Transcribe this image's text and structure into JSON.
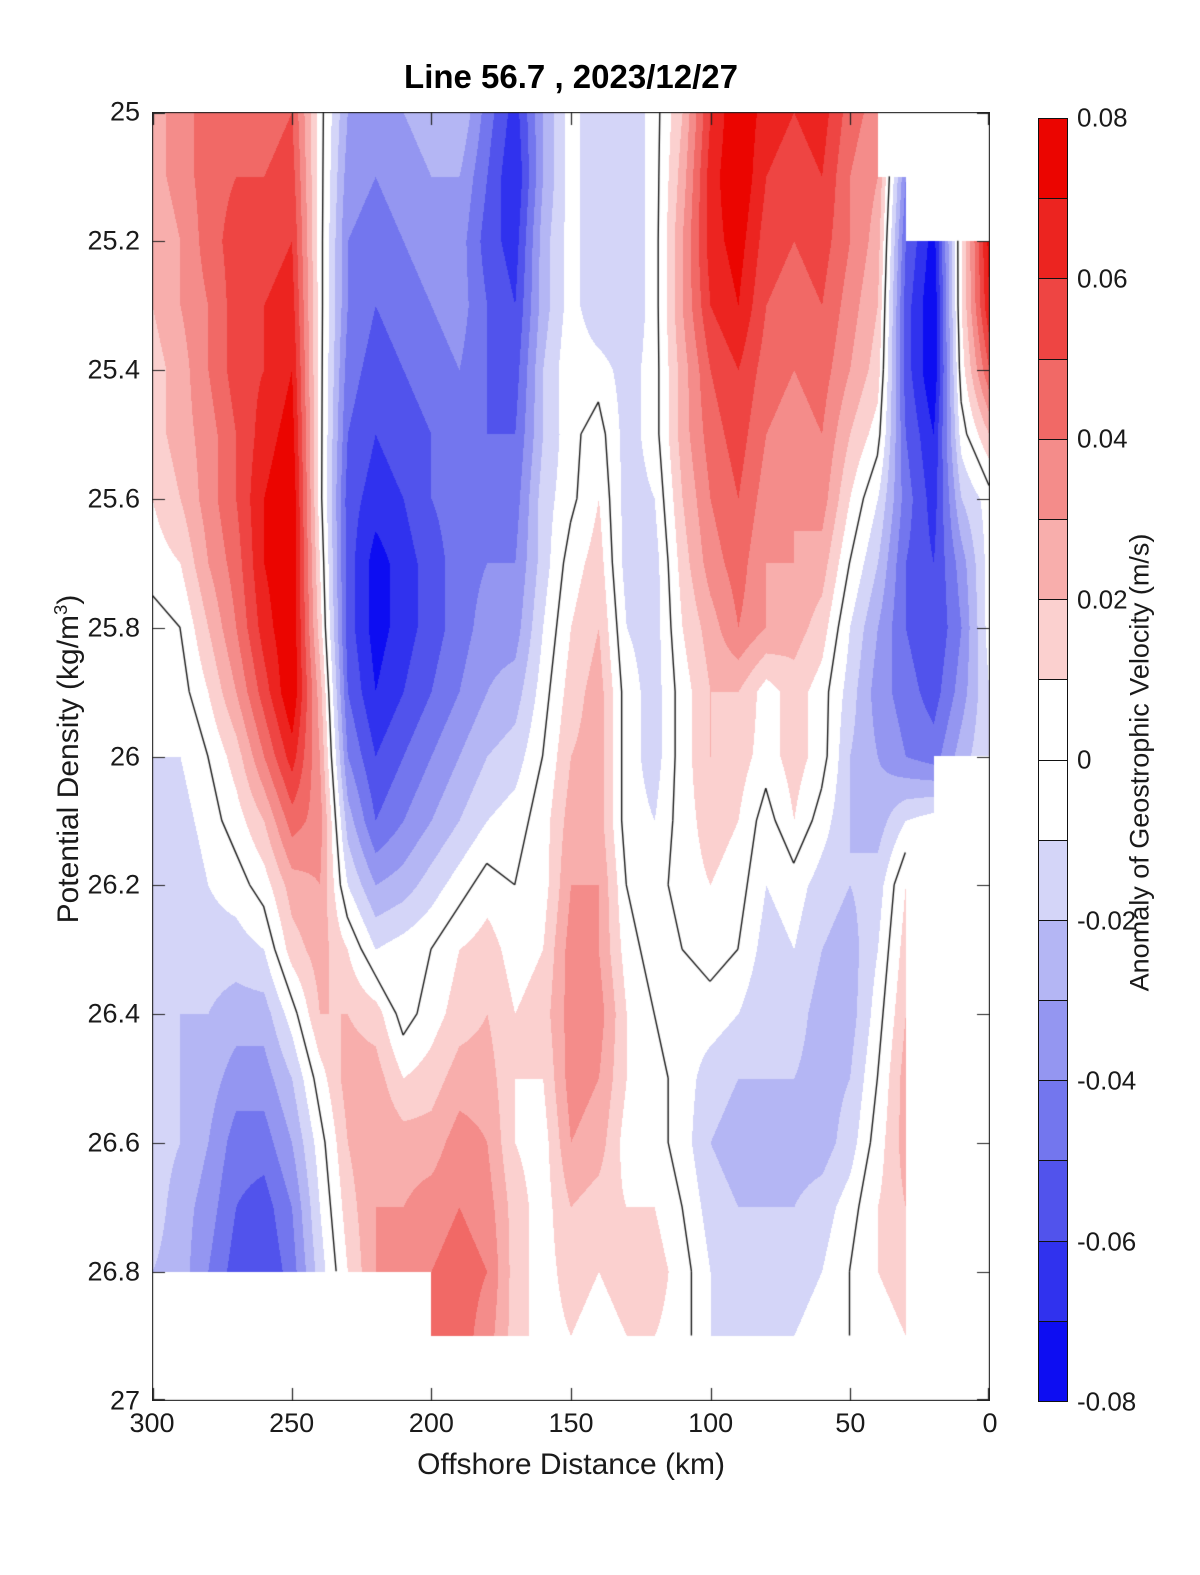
{
  "title": "Line 56.7 , 2023/12/27",
  "axes": {
    "xlabel": "Offshore Distance (km)",
    "ylabel_prefix": "Potential Density (kg/m",
    "ylabel_sup": "3",
    "ylabel_suffix": ")",
    "x_tick_labels": [
      "300",
      "250",
      "200",
      "150",
      "100",
      "50",
      "0"
    ],
    "x_tick_values": [
      300,
      250,
      200,
      150,
      100,
      50,
      0
    ],
    "y_tick_labels": [
      "25",
      "25.2",
      "25.4",
      "25.6",
      "25.8",
      "26",
      "26.2",
      "26.4",
      "26.6",
      "26.8",
      "27"
    ],
    "y_tick_values": [
      25,
      25.2,
      25.4,
      25.6,
      25.8,
      26,
      26.2,
      26.4,
      26.6,
      26.8,
      27
    ],
    "x_range": [
      300,
      0
    ],
    "y_range": [
      25,
      27
    ]
  },
  "colorbar": {
    "label": "Anomaly of Geostrophic Velocity (m/s)",
    "tick_labels": [
      "0.08",
      "0.06",
      "0.04",
      "0.02",
      "0",
      "-0.02",
      "-0.04",
      "-0.06",
      "-0.08"
    ],
    "tick_values": [
      0.08,
      0.06,
      0.04,
      0.02,
      0,
      -0.02,
      -0.04,
      -0.06,
      -0.08
    ],
    "range": [
      -0.08,
      0.08
    ],
    "level_step": 0.01,
    "colors_neg_to_pos": [
      "#0d0df2",
      "#3032ee",
      "#5153ec",
      "#7376ee",
      "#9496f1",
      "#b4b6f4",
      "#d4d5f8",
      "#ffffff",
      "#ffffff",
      "#fbd0cf",
      "#f8aeac",
      "#f48c8a",
      "#f16966",
      "#ee4543",
      "#ec2420",
      "#eb0500"
    ]
  },
  "chart_data": {
    "type": "heatmap",
    "title": "Line 56.7 , 2023/12/27",
    "xlabel": "Offshore Distance (km)",
    "ylabel": "Potential Density (kg/m3)",
    "zlabel": "Anomaly of Geostrophic Velocity (m/s)",
    "x_axis_reversed": true,
    "grid": false,
    "contour_level": 0,
    "value_units": "0.01 m/s",
    "x_km": [
      300,
      290,
      280,
      270,
      260,
      250,
      240,
      230,
      220,
      210,
      200,
      190,
      180,
      170,
      160,
      150,
      140,
      130,
      120,
      110,
      100,
      90,
      80,
      70,
      60,
      50,
      40,
      30,
      20,
      10,
      0
    ],
    "y_sigma": [
      25.0,
      25.1,
      25.2,
      25.3,
      25.4,
      25.5,
      25.6,
      25.7,
      25.8,
      25.9,
      26.0,
      26.1,
      26.2,
      26.3,
      26.4,
      26.5,
      26.6,
      26.7,
      26.8,
      26.9,
      27.0
    ],
    "values": [
      [
        2.5,
        3.5,
        4.5,
        4.5,
        4.5,
        5,
        0.5,
        -3,
        -3.5,
        -3,
        -2.5,
        -2,
        -4.5,
        -6.5,
        -3,
        -0.5,
        -2,
        -2,
        -0.5,
        2,
        6,
        8,
        6.5,
        6,
        6.5,
        4.5,
        3.5,
        null,
        null,
        null,
        null
      ],
      [
        2.5,
        3.5,
        4.5,
        5,
        5,
        5.5,
        0.5,
        -3.5,
        -4,
        -3.5,
        -3,
        -3,
        -5,
        -7,
        -3,
        -0.5,
        -2,
        -2,
        -0.5,
        2.5,
        6.5,
        8,
        6,
        5.5,
        6,
        4,
        3,
        -4,
        null,
        null,
        null
      ],
      [
        2,
        3,
        4.5,
        5.5,
        5.5,
        6,
        0.5,
        -4,
        -4.5,
        -4,
        -3.5,
        -3.5,
        -5.5,
        -6.5,
        -2.5,
        -0.5,
        -2,
        -2,
        -0.5,
        3,
        6.5,
        7.5,
        5.5,
        5,
        5.5,
        4,
        2.5,
        -5,
        -7.5,
        1,
        7.5
      ],
      [
        2,
        3,
        4,
        5.5,
        6,
        6.5,
        0.5,
        -4,
        -5,
        -4.5,
        -4,
        -3.5,
        -5,
        -6,
        -2.5,
        -0.5,
        -2,
        -2,
        -0.5,
        3,
        6,
        7,
        5,
        4.5,
        5,
        3.5,
        2,
        -5.5,
        -8,
        1,
        7
      ],
      [
        1.5,
        2.5,
        4,
        5.5,
        6,
        7,
        0.5,
        -4.5,
        -5.5,
        -5,
        -4.5,
        -4,
        -5,
        -5.5,
        -2,
        -0.2,
        -0.5,
        -1.5,
        -0.5,
        2.5,
        5,
        6,
        4.5,
        4,
        4.5,
        3,
        1.5,
        -5.5,
        -8,
        0.5,
        5
      ],
      [
        1.5,
        2.5,
        3.5,
        5,
        6.5,
        7.5,
        0.5,
        -5,
        -6,
        -5.5,
        -5,
        -4.5,
        -5,
        -5,
        -2,
        -0.3,
        0.5,
        -1.5,
        -0.5,
        2.5,
        4.5,
        5.5,
        4,
        3.5,
        4,
        2,
        0.5,
        -5,
        -7,
        -0.5,
        2
      ],
      [
        1,
        2,
        3.5,
        5,
        7,
        8,
        0.5,
        -5.5,
        -6.5,
        -6,
        -5,
        -4.5,
        -4.5,
        -4.5,
        -1.5,
        -0.3,
        1,
        -1.5,
        -1,
        2,
        4,
        5,
        3.5,
        3,
        3.5,
        1,
        -1,
        -4.5,
        -6.5,
        -2,
        -0.5
      ],
      [
        0.5,
        1,
        3,
        4.5,
        7,
        8,
        1,
        -5.5,
        -7.5,
        -6.5,
        -5.5,
        -4.5,
        -4,
        -4,
        -1.5,
        0.5,
        1.5,
        -1.5,
        -1.5,
        1.5,
        3.5,
        4.5,
        3,
        3,
        2.5,
        0,
        -2,
        -5,
        -6,
        -3.5,
        -0.5
      ],
      [
        -0.5,
        0,
        2,
        4,
        6.5,
        8,
        1.5,
        -5.5,
        -7.5,
        -6.5,
        -5.5,
        -4.5,
        -3.5,
        -3.5,
        -1,
        1,
        2,
        -1,
        -1.5,
        1,
        2.5,
        4,
        3,
        2.5,
        1.5,
        -1,
        -3,
        -5,
        -6,
        -4,
        -0.5
      ],
      [
        -0.5,
        -0.5,
        1,
        3,
        5.5,
        8,
        2.5,
        -5,
        -7,
        -6,
        -5,
        -4,
        -3,
        -2.5,
        -0.5,
        1.5,
        2.5,
        -0.5,
        -1.5,
        0.5,
        2,
        2,
        0.5,
        1.5,
        0.5,
        -1.5,
        -3.5,
        -4.5,
        -5.5,
        -3.5,
        -1
      ],
      [
        -1,
        -1,
        0,
        1.5,
        4,
        6.5,
        3,
        -4,
        -6,
        -5,
        -4,
        -3,
        -2,
        -1.5,
        0,
        2,
        2.5,
        -0.5,
        -1.5,
        0.5,
        2,
        1.5,
        0.5,
        1.5,
        0.5,
        -2,
        -3,
        -4,
        -4.5,
        -2.5,
        -1
      ],
      [
        -1.5,
        -1.5,
        -0.5,
        0.5,
        2,
        4.5,
        3.5,
        -2.5,
        -5,
        -4,
        -3,
        -2,
        -1,
        -0.5,
        0.5,
        2.5,
        2.5,
        -0.5,
        -1,
        0.5,
        1.5,
        1,
        -0.5,
        1,
        -0.5,
        -2,
        -2.5,
        -1,
        -0.5,
        null,
        null
      ],
      [
        -1.5,
        -2,
        -1,
        -0.5,
        0.5,
        2.5,
        3,
        -1,
        -3,
        -2.5,
        -1.5,
        -0.5,
        0.5,
        0,
        0.5,
        3,
        3,
        0,
        -0.5,
        0.5,
        1,
        0.5,
        -1,
        -0.5,
        -1.5,
        -2,
        -1.5,
        1,
        null,
        null,
        null
      ],
      [
        -1.5,
        -2,
        -1.5,
        -1.5,
        -1,
        1.5,
        2.5,
        1,
        -1,
        -0.5,
        0,
        1,
        1.5,
        0.5,
        1,
        3.5,
        3,
        0.5,
        -0.5,
        0,
        0.5,
        0,
        -1.5,
        -1,
        -2,
        -2.5,
        -1,
        1.5,
        null,
        null,
        null
      ],
      [
        -1.5,
        -2,
        -2,
        -2.5,
        -2.5,
        -0.5,
        2,
        2,
        1.5,
        -0.5,
        0.5,
        1.5,
        2,
        1,
        1.5,
        3.5,
        3.5,
        1,
        0,
        -0.5,
        -0.5,
        -1,
        -2,
        -1.5,
        -2.5,
        -2.5,
        -0.5,
        2,
        null,
        null,
        null
      ],
      [
        -1.5,
        -2,
        -2.5,
        -3.5,
        -3.5,
        -2,
        0.5,
        2.5,
        2.5,
        1,
        1.5,
        2.5,
        2.5,
        1,
        1,
        3.5,
        3,
        1,
        0.5,
        -0.5,
        -1.5,
        -2,
        -2,
        -2,
        -2.5,
        -2,
        0,
        2.5,
        null,
        null,
        null
      ],
      [
        -1.5,
        -2,
        -3,
        -4.5,
        -4.5,
        -3,
        -0.5,
        2,
        3,
        2.5,
        2.5,
        3.5,
        3,
        1,
        0.5,
        3,
        2.5,
        0.5,
        0.5,
        -0.5,
        -2,
        -2.5,
        -2.5,
        -2.5,
        -2.5,
        -1.5,
        0.5,
        2.5,
        null,
        null,
        null
      ],
      [
        -1.5,
        -2.5,
        -3.5,
        -5,
        -5.5,
        -4,
        -1,
        1.5,
        3,
        3,
        3.5,
        4,
        3.5,
        1.5,
        0.5,
        2,
        1.5,
        1,
        1,
        0,
        -1.5,
        -2,
        -2,
        -2,
        -1.5,
        -0.5,
        1,
        2,
        null,
        null,
        null
      ],
      [
        -2,
        -2.5,
        -4,
        -5.5,
        -6,
        -4.5,
        -1.5,
        1,
        3,
        3.5,
        4,
        4.5,
        4,
        1.5,
        0.5,
        1.5,
        1,
        1.5,
        1.5,
        0.5,
        -1,
        -1.5,
        -1.5,
        -1.5,
        -1,
        0,
        1,
        1.5,
        null,
        null,
        null
      ],
      [
        -2.5,
        null,
        null,
        null,
        null,
        null,
        null,
        null,
        null,
        null,
        4,
        4.5,
        3.5,
        1.5,
        0.5,
        1,
        0.5,
        1,
        1,
        0.5,
        -1,
        -1.5,
        -1.5,
        -1,
        -0.5,
        0,
        0.5,
        1,
        null,
        null,
        null
      ],
      [
        null,
        null,
        null,
        null,
        null,
        null,
        null,
        null,
        null,
        null,
        null,
        null,
        null,
        null,
        null,
        null,
        null,
        null,
        null,
        null,
        null,
        null,
        null,
        null,
        null,
        null,
        null,
        null,
        null,
        null,
        null
      ]
    ]
  }
}
